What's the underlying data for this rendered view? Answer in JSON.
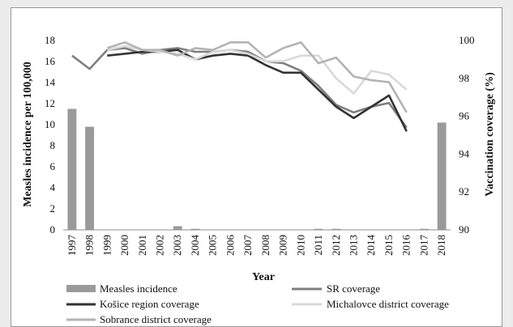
{
  "chart_data": {
    "type": "bar+line",
    "xlabel": "Year",
    "ylabel_left": "Measles incidence per 100,000",
    "ylabel_right": "Vaccination coverage (%)",
    "ylim_left": [
      0,
      18
    ],
    "yticks_left": [
      "0",
      "2",
      "4",
      "6",
      "8",
      "10",
      "12",
      "14",
      "16",
      "18"
    ],
    "ylim_right": [
      90,
      100
    ],
    "yticks_right": [
      "90",
      "92",
      "94",
      "96",
      "98",
      "100"
    ],
    "categories": [
      "1997",
      "1998",
      "1999",
      "2000",
      "2001",
      "2002",
      "2003",
      "2004",
      "2005",
      "2006",
      "2007",
      "2008",
      "2009",
      "2010",
      "2011",
      "2012",
      "2013",
      "2014",
      "2015",
      "2016",
      "2017",
      "2018"
    ],
    "bars": {
      "name": "Measles incidence",
      "color": "#9a9a9a",
      "values": [
        11.5,
        9.8,
        0,
        0,
        0,
        0,
        0.35,
        0.1,
        0,
        0,
        0,
        0,
        0,
        0,
        0.1,
        0.1,
        0,
        0,
        0,
        0,
        0.1,
        10.2
      ]
    },
    "series": [
      {
        "name": "SR coverage",
        "color": "#7f7f7f",
        "values": [
          99.2,
          98.5,
          99.5,
          99.6,
          99.3,
          99.5,
          99.6,
          99.4,
          99.4,
          99.5,
          99.4,
          98.9,
          98.8,
          98.4,
          97.6,
          96.6,
          96.2,
          96.5,
          96.7,
          95.4,
          null,
          null
        ]
      },
      {
        "name": "Košice region coverage",
        "color": "#333333",
        "values": [
          null,
          null,
          99.2,
          99.3,
          99.4,
          99.4,
          99.5,
          99.0,
          99.2,
          99.3,
          99.2,
          98.7,
          98.3,
          98.3,
          97.4,
          96.5,
          95.9,
          96.5,
          97.1,
          95.2,
          null,
          null
        ]
      },
      {
        "name": "Michalovce district coverage",
        "color": "#d9d9d9",
        "values": [
          null,
          null,
          99.5,
          99.7,
          99.5,
          99.4,
          99.3,
          99.0,
          99.4,
          99.5,
          99.3,
          98.9,
          98.9,
          99.2,
          99.2,
          98.0,
          97.2,
          98.4,
          98.2,
          97.4,
          null,
          null
        ]
      },
      {
        "name": "Sobrance district coverage",
        "color": "#b3b3b3",
        "values": [
          null,
          null,
          99.6,
          99.9,
          99.5,
          99.5,
          99.2,
          99.6,
          99.5,
          99.9,
          99.9,
          99.1,
          99.6,
          99.9,
          98.8,
          99.1,
          98.1,
          97.9,
          97.8,
          96.2,
          null,
          null
        ]
      }
    ],
    "legend_position": "bottom",
    "grid": false
  }
}
